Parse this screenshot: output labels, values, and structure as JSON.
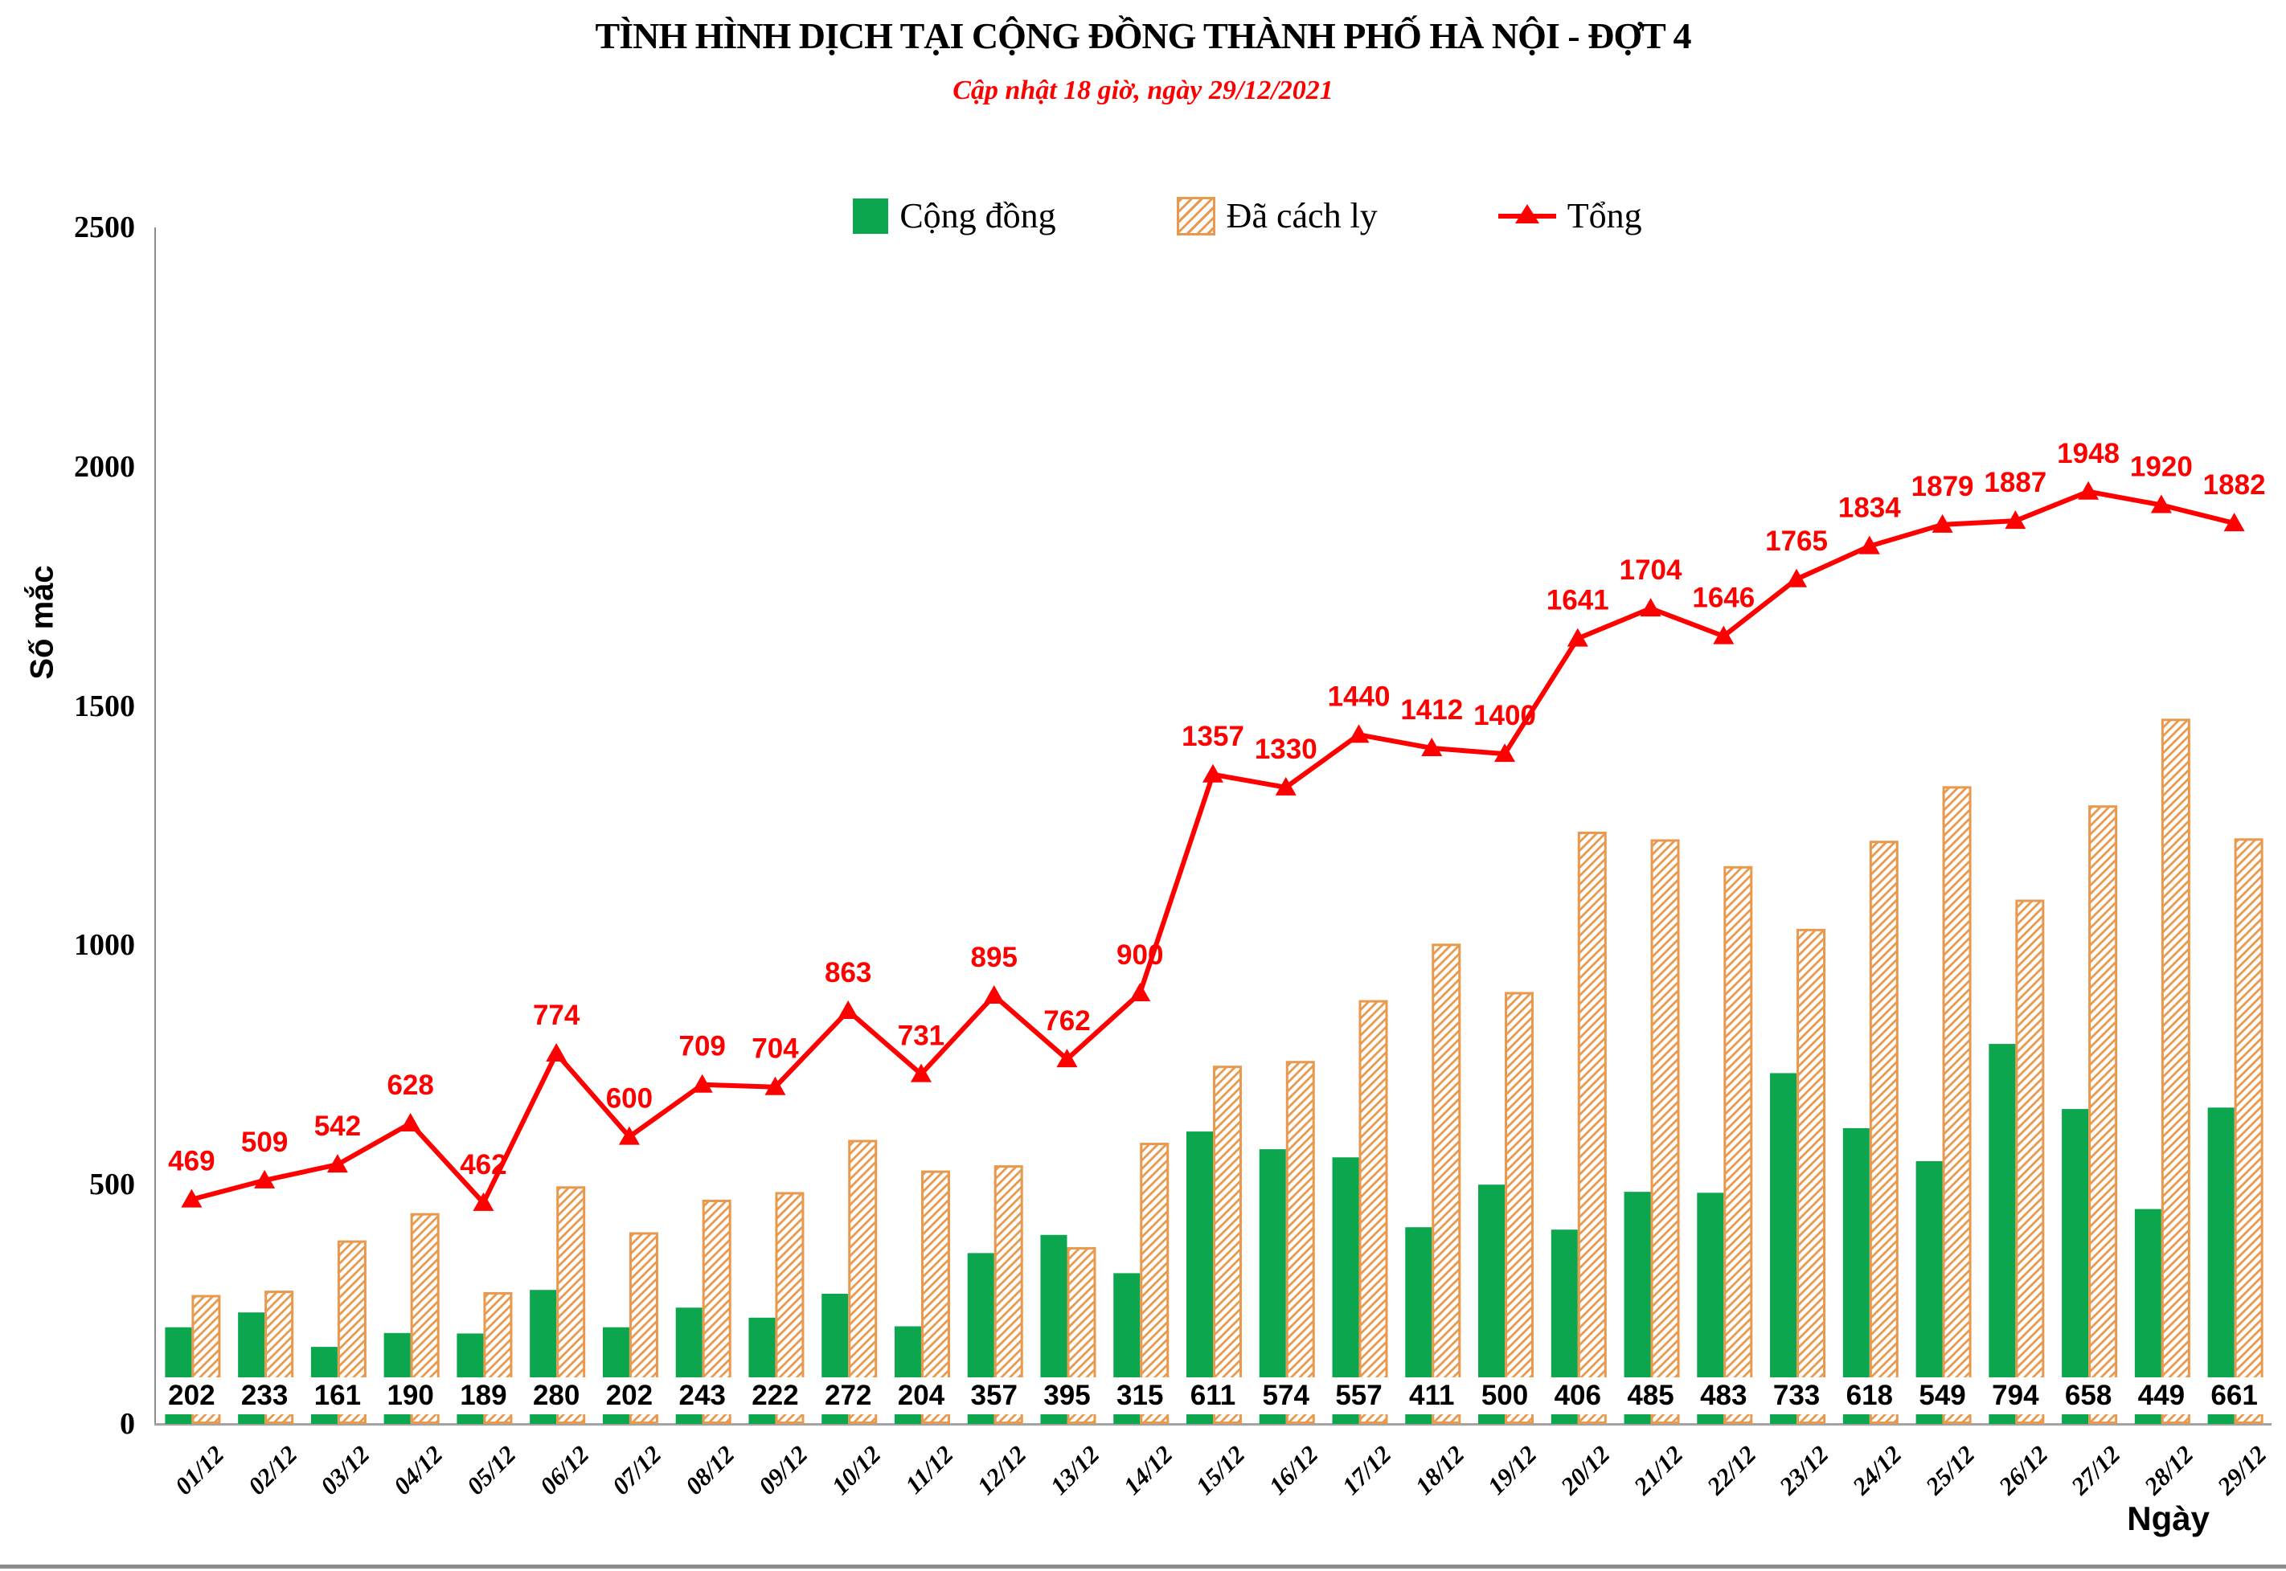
{
  "title": "TÌNH HÌNH DỊCH TẠI CỘNG ĐỒNG THÀNH PHỐ HÀ NỘI - ĐỢT 4",
  "subtitle": "Cập nhật 18 giờ, ngày 29/12/2021",
  "legend": [
    {
      "label": "Cộng đồng",
      "swatch": "green-solid-square"
    },
    {
      "label": "Đã cách ly",
      "swatch": "orange-hatched-square"
    },
    {
      "label": "Tổng",
      "swatch": "red-line-with-triangle-marker"
    }
  ],
  "colors": {
    "green": "#0ca64e",
    "orange": "#e8994d",
    "red": "#fe0000",
    "axis_gray": "#8c8c8c",
    "label_black": "#000000",
    "label_box_white": "#ffffff"
  },
  "chart_data": {
    "type": "bar",
    "subtype": "grouped-bars-with-line-overlay",
    "title": "TÌNH HÌNH DỊCH TẠI CỘNG ĐỒNG THÀNH PHỐ HÀ NỘI - ĐỢT 4",
    "subtitle": "Cập nhật 18 giờ, ngày 29/12/2021",
    "xlabel": "Ngày",
    "ylabel": "Số mắc",
    "ylim": [
      0,
      2500
    ],
    "y_ticks": [
      0,
      500,
      1000,
      1500,
      2000,
      2500
    ],
    "grid": false,
    "legend_position": "top-center",
    "categories": [
      "01/12",
      "02/12",
      "03/12",
      "04/12",
      "05/12",
      "06/12",
      "07/12",
      "08/12",
      "09/12",
      "10/12",
      "11/12",
      "12/12",
      "13/12",
      "14/12",
      "15/12",
      "16/12",
      "17/12",
      "18/12",
      "19/12",
      "20/12",
      "21/12",
      "22/12",
      "23/12",
      "24/12",
      "25/12",
      "26/12",
      "27/12",
      "28/12",
      "29/12"
    ],
    "series": [
      {
        "name": "Cộng đồng",
        "type": "bar",
        "style": "solid-green",
        "labels_shown": true,
        "values": [
          202,
          233,
          161,
          190,
          189,
          280,
          202,
          243,
          222,
          272,
          204,
          357,
          395,
          315,
          611,
          574,
          557,
          411,
          500,
          406,
          485,
          483,
          733,
          618,
          549,
          794,
          658,
          449,
          661
        ]
      },
      {
        "name": "Đã cách ly",
        "type": "bar",
        "style": "orange-diagonal-hatch",
        "labels_shown": false,
        "values": [
          267,
          276,
          381,
          438,
          273,
          494,
          398,
          466,
          482,
          591,
          527,
          538,
          367,
          585,
          746,
          756,
          883,
          1001,
          900,
          1235,
          1219,
          1163,
          1032,
          1216,
          1330,
          1093,
          1290,
          1471,
          1221
        ]
      },
      {
        "name": "Tổng",
        "type": "line",
        "style": "red-line-triangle-markers",
        "labels_shown": true,
        "values": [
          469,
          509,
          542,
          628,
          462,
          774,
          600,
          709,
          704,
          863,
          731,
          895,
          762,
          900,
          1357,
          1330,
          1440,
          1412,
          1400,
          1641,
          1704,
          1646,
          1765,
          1834,
          1879,
          1887,
          1948,
          1920,
          1882
        ]
      }
    ]
  }
}
